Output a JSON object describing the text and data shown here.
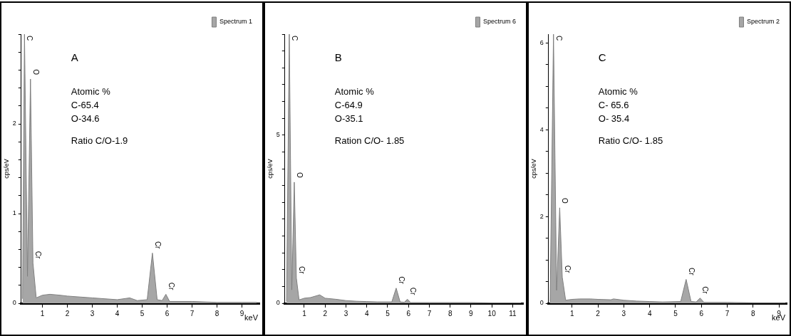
{
  "chart_data": [
    {
      "type": "area",
      "title": "A",
      "xlabel": "keV",
      "ylabel": "cps/eV",
      "legend": "top right",
      "xlim": [
        0.15,
        9.7
      ],
      "ylim": [
        0,
        3
      ],
      "xticks": [
        1,
        2,
        3,
        4,
        5,
        6,
        7,
        8,
        9
      ],
      "yticks": [
        0,
        {
          "value": 0.2,
          "label": null
        },
        {
          "value": 0.4,
          "label": null
        },
        {
          "value": 0.6,
          "label": null
        },
        {
          "value": 0.8,
          "label": null
        },
        1,
        {
          "value": 1.2,
          "label": null
        },
        {
          "value": 1.4,
          "label": null
        },
        {
          "value": 1.6,
          "label": null
        },
        {
          "value": 1.8,
          "label": null
        },
        2,
        {
          "value": 2.2,
          "label": null
        },
        {
          "value": 2.4,
          "label": null
        },
        {
          "value": 2.6,
          "label": null
        },
        {
          "value": 2.8,
          "label": null
        },
        {
          "value": 3,
          "label": null
        }
      ],
      "series": [
        {
          "name": "Spectrum 1",
          "color": "#a6a6a6",
          "x": [
            0.2,
            0.28,
            0.4,
            0.52,
            0.62,
            0.75,
            1.0,
            1.3,
            1.7,
            2.0,
            2.5,
            3.0,
            3.5,
            4.0,
            4.5,
            4.8,
            5.2,
            5.41,
            5.6,
            5.8,
            5.95,
            6.1,
            6.3,
            7,
            8,
            9,
            9.6
          ],
          "values": [
            0.05,
            3,
            0.3,
            2.5,
            0.45,
            0.06,
            0.09,
            0.1,
            0.09,
            0.08,
            0.07,
            0.06,
            0.05,
            0.04,
            0.06,
            0.03,
            0.04,
            0.56,
            0.04,
            0.03,
            0.1,
            0.02,
            0.02,
            0.02,
            0.01,
            0.01,
            0.01
          ]
        }
      ],
      "annotations": [
        "Atomic %",
        "C-65.4",
        "O-34.6",
        "Ratio C/O-1.9",
        {
          "text": "C",
          "x": 0.28,
          "y": 3
        },
        {
          "text": "O",
          "x": 0.52,
          "y": 2.5
        },
        {
          "text": "Cr",
          "x": 0.62,
          "y": 0.45
        },
        {
          "text": "Cr",
          "x": 5.41,
          "y": 0.56
        },
        {
          "text": "Cr",
          "x": 5.95,
          "y": 0.1
        }
      ]
    },
    {
      "type": "area",
      "title": "B",
      "ylabel": "cps/eV",
      "legend": "top right",
      "xlim": [
        0.07,
        11.5
      ],
      "ylim": [
        0,
        8
      ],
      "xticks": [
        1,
        2,
        3,
        4,
        5,
        6,
        7,
        8,
        9,
        10,
        11
      ],
      "yticks": [
        0,
        {
          "value": 0.5,
          "label": null
        },
        {
          "value": 1,
          "label": null
        },
        {
          "value": 1.5,
          "label": null
        },
        {
          "value": 2,
          "label": null
        },
        {
          "value": 2.5,
          "label": null
        },
        {
          "value": 3,
          "label": null
        },
        {
          "value": 3.5,
          "label": null
        },
        {
          "value": 4,
          "label": null
        },
        {
          "value": 4.5,
          "label": null
        },
        5,
        {
          "value": 5.5,
          "label": null
        },
        {
          "value": 6,
          "label": null
        },
        {
          "value": 6.5,
          "label": null
        },
        {
          "value": 7,
          "label": null
        },
        {
          "value": 7.5,
          "label": null
        },
        {
          "value": 8,
          "label": null
        }
      ],
      "series": [
        {
          "name": "Spectrum 6",
          "color": "#a6a6a6",
          "x": [
            0.15,
            0.28,
            0.4,
            0.52,
            0.62,
            0.75,
            1.0,
            1.3,
            1.74,
            2.0,
            2.5,
            3.0,
            3.5,
            4.0,
            4.5,
            5.2,
            5.41,
            5.6,
            5.8,
            5.95,
            6.1,
            7,
            8,
            9,
            10,
            11,
            11.4
          ],
          "values": [
            0.05,
            8,
            0.4,
            3.6,
            0.75,
            0.1,
            0.15,
            0.17,
            0.25,
            0.15,
            0.12,
            0.08,
            0.06,
            0.05,
            0.04,
            0.04,
            0.45,
            0.04,
            0.03,
            0.12,
            0.02,
            0.02,
            0.02,
            0.02,
            0.01,
            0.01,
            0.01
          ]
        }
      ],
      "annotations": [
        "Atomic %",
        "C-64.9",
        "O-35.1",
        "Ration C/O- 1.85",
        {
          "text": "C",
          "x": 0.28,
          "y": 8
        },
        {
          "text": "O",
          "x": 0.52,
          "y": 3.6
        },
        {
          "text": "Cr",
          "x": 0.62,
          "y": 0.75
        },
        {
          "text": "Cr",
          "x": 5.41,
          "y": 0.45
        },
        {
          "text": "Cr",
          "x": 5.95,
          "y": 0.12
        }
      ]
    },
    {
      "type": "area",
      "title": "C",
      "xlabel": "keV",
      "ylabel": "cps/eV",
      "legend": "top right",
      "xlim": [
        0.09,
        9.3
      ],
      "ylim": [
        0,
        6.2
      ],
      "xticks": [
        1,
        2,
        3,
        4,
        5,
        6,
        7,
        8,
        9
      ],
      "yticks": [
        0,
        {
          "value": 0.5,
          "label": null
        },
        {
          "value": 1,
          "label": null
        },
        {
          "value": 1.5,
          "label": null
        },
        2,
        {
          "value": 2.5,
          "label": null
        },
        {
          "value": 3,
          "label": null
        },
        {
          "value": 3.5,
          "label": null
        },
        4,
        {
          "value": 4.5,
          "label": null
        },
        {
          "value": 5,
          "label": null
        },
        {
          "value": 5.5,
          "label": null
        },
        6
      ],
      "series": [
        {
          "name": "Spectrum 2",
          "color": "#a6a6a6",
          "x": [
            0.15,
            0.28,
            0.4,
            0.52,
            0.62,
            0.75,
            1.0,
            1.3,
            1.7,
            2.0,
            2.5,
            2.6,
            3.0,
            3.5,
            4.0,
            4.5,
            5.2,
            5.41,
            5.6,
            5.8,
            5.95,
            6.1,
            7,
            8,
            9,
            9.25
          ],
          "values": [
            0.03,
            6.2,
            0.3,
            2.2,
            0.6,
            0.07,
            0.09,
            0.1,
            0.1,
            0.09,
            0.08,
            0.1,
            0.07,
            0.05,
            0.04,
            0.03,
            0.04,
            0.55,
            0.04,
            0.03,
            0.12,
            0.02,
            0.02,
            0.01,
            0.01,
            0.01
          ]
        }
      ],
      "annotations": [
        "Atomic %",
        "C- 65.6",
        "O- 35.4",
        "Ratio C/O- 1.85",
        {
          "text": "C",
          "x": 0.28,
          "y": 6.2
        },
        {
          "text": "O",
          "x": 0.52,
          "y": 2.2
        },
        {
          "text": "Cr",
          "x": 0.62,
          "y": 0.6
        },
        {
          "text": "Cr",
          "x": 5.41,
          "y": 0.55
        },
        {
          "text": "Cr",
          "x": 5.95,
          "y": 0.12
        }
      ]
    }
  ]
}
